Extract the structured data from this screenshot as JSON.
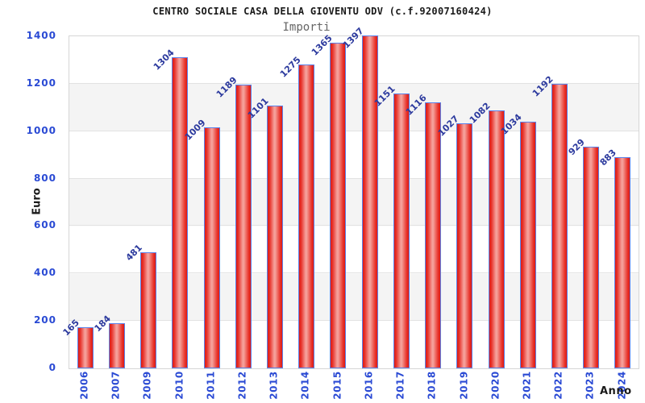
{
  "header": {
    "title": "CENTRO SOCIALE CASA DELLA GIOVENTU ODV (c.f.92007160424)",
    "subtitle": "Importi"
  },
  "chart_data": {
    "type": "bar",
    "title": "Importi",
    "categories": [
      "2006",
      "2007",
      "2009",
      "2010",
      "2011",
      "2012",
      "2013",
      "2014",
      "2015",
      "2016",
      "2017",
      "2018",
      "2019",
      "2020",
      "2021",
      "2022",
      "2023",
      "2024"
    ],
    "values": [
      165,
      184,
      481,
      1304,
      1009,
      1189,
      1101,
      1275,
      1365,
      1397,
      1151,
      1116,
      1027,
      1082,
      1034,
      1192,
      929,
      883
    ],
    "xlabel": "Anno",
    "ylabel": "Euro",
    "ylim": [
      0,
      1400
    ],
    "yticks": [
      0,
      200,
      400,
      600,
      800,
      1000,
      1200,
      1400
    ],
    "grid": true,
    "legend": "none",
    "value_labels_rotation_deg": -45,
    "category_labels_rotation_deg": -90,
    "colors": {
      "bar_fill_edge": "#dd1a12",
      "bar_fill_highlight": "#f5a09a",
      "bar_border": "#5b82ea",
      "axis_tick_label": "#2a4ad4",
      "value_label": "#2c3a9e",
      "band_fill": "#f4f4f4",
      "grid_line": "#e2e2e2",
      "plot_border": "#d6d6d6",
      "title_text": "#1a1a1a",
      "subtitle_text": "#666666"
    }
  }
}
